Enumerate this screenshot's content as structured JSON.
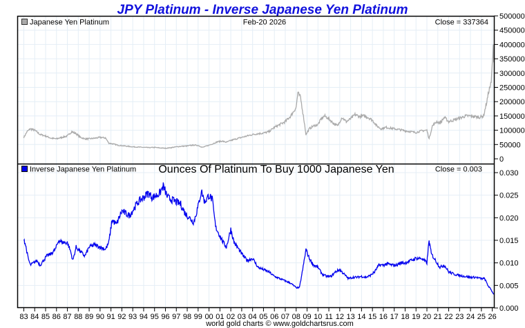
{
  "chart_data": [
    {
      "type": "line",
      "title": "JPY Platinum - Inverse Japanese Yen Platinum",
      "panel": "top",
      "legend": "Japanese Yen Platinum",
      "legend_color": "#aaaaaa",
      "date_label": "Feb-20  2026",
      "close_label": "Close = 337364",
      "series_color": "#aaaaaa",
      "ylim": [
        0,
        500000
      ],
      "yticks": [
        "500000",
        "450000",
        "400000",
        "350000",
        "300000",
        "250000",
        "200000",
        "150000",
        "100000",
        "50000",
        "0"
      ],
      "ytick_values": [
        500000,
        450000,
        400000,
        350000,
        300000,
        250000,
        200000,
        150000,
        100000,
        50000,
        0
      ],
      "x": [
        1983.0,
        1983.3,
        1983.6,
        1984.0,
        1984.5,
        1985.0,
        1985.5,
        1986.0,
        1986.5,
        1987.0,
        1987.4,
        1987.8,
        1988.2,
        1988.6,
        1989.0,
        1989.5,
        1990.0,
        1990.5,
        1990.8,
        1991.2,
        1991.6,
        1992.0,
        1992.5,
        1993.0,
        1993.5,
        1994.0,
        1994.5,
        1995.0,
        1995.5,
        1996.0,
        1996.5,
        1997.0,
        1997.5,
        1998.0,
        1998.5,
        1999.0,
        1999.4,
        1999.8,
        2000.3,
        2000.8,
        2001.2,
        2001.6,
        2002.0,
        2002.5,
        2003.0,
        2003.5,
        2004.0,
        2004.5,
        2005.0,
        2005.5,
        2006.0,
        2006.5,
        2007.0,
        2007.5,
        2008.0,
        2008.15,
        2008.4,
        2008.7,
        2008.9,
        2009.2,
        2009.6,
        2010.0,
        2010.3,
        2010.6,
        2011.0,
        2011.4,
        2011.8,
        2012.2,
        2012.6,
        2013.0,
        2013.4,
        2013.8,
        2014.2,
        2014.6,
        2015.0,
        2015.4,
        2015.8,
        2016.2,
        2016.6,
        2017.0,
        2017.5,
        2018.0,
        2018.5,
        2019.0,
        2019.5,
        2020.0,
        2020.2,
        2020.5,
        2020.9,
        2021.2,
        2021.6,
        2022.0,
        2022.4,
        2022.8,
        2023.2,
        2023.6,
        2024.0,
        2024.4,
        2024.8,
        2025.2,
        2025.5,
        2025.7,
        2025.9,
        2026.0,
        2026.1,
        2026.14
      ],
      "values": [
        75000,
        95000,
        105000,
        100000,
        85000,
        80000,
        72000,
        70000,
        75000,
        80000,
        95000,
        88000,
        75000,
        70000,
        70000,
        72000,
        75000,
        73000,
        55000,
        52000,
        48000,
        46000,
        44000,
        42000,
        41000,
        40000,
        39000,
        40000,
        38000,
        37000,
        39000,
        42000,
        44000,
        45000,
        48000,
        47000,
        40000,
        45000,
        52000,
        60000,
        62000,
        58000,
        64000,
        70000,
        75000,
        80000,
        85000,
        88000,
        90000,
        95000,
        110000,
        120000,
        130000,
        150000,
        180000,
        230000,
        215000,
        140000,
        85000,
        105000,
        115000,
        120000,
        140000,
        150000,
        140000,
        125000,
        115000,
        145000,
        130000,
        140000,
        155000,
        148000,
        150000,
        145000,
        135000,
        115000,
        105000,
        110000,
        108000,
        105000,
        102000,
        98000,
        95000,
        92000,
        98000,
        100000,
        70000,
        115000,
        130000,
        125000,
        145000,
        130000,
        135000,
        140000,
        145000,
        150000,
        150000,
        148000,
        145000,
        150000,
        200000,
        240000,
        265000,
        330000,
        390000,
        337364
      ]
    },
    {
      "type": "line",
      "panel": "bottom",
      "legend": "Inverse Japanese Yen Platinum",
      "legend_color": "#0000ee",
      "subtitle": "Ounces Of Platinum To Buy 1000 Japanese Yen",
      "close_label": "Close = 0.003",
      "series_color": "#0000ee",
      "ylim": [
        0,
        0.03
      ],
      "yticks": [
        "0.030",
        "0.025",
        "0.020",
        "0.015",
        "0.010",
        "0.005",
        "0.000"
      ],
      "ytick_values": [
        0.03,
        0.025,
        0.02,
        0.015,
        0.01,
        0.005,
        0.0
      ],
      "x": [
        1983.0,
        1983.2,
        1983.4,
        1983.6,
        1983.9,
        1984.2,
        1984.5,
        1984.8,
        1985.1,
        1985.5,
        1985.9,
        1986.2,
        1986.6,
        1987.0,
        1987.3,
        1987.5,
        1987.8,
        1988.2,
        1988.6,
        1989.0,
        1989.5,
        1990.0,
        1990.5,
        1990.8,
        1991.1,
        1991.5,
        1992.0,
        1992.3,
        1992.7,
        1993.1,
        1993.5,
        1994.0,
        1994.4,
        1994.8,
        1995.2,
        1995.5,
        1995.8,
        1996.2,
        1996.6,
        1997.0,
        1997.4,
        1997.8,
        1998.2,
        1998.6,
        1999.0,
        1999.3,
        1999.6,
        2000.0,
        2000.3,
        2000.6,
        2001.0,
        2001.3,
        2001.6,
        2002.0,
        2002.3,
        2002.6,
        2003.0,
        2003.5,
        2004.0,
        2004.5,
        2005.0,
        2005.5,
        2006.0,
        2006.5,
        2007.0,
        2007.5,
        2008.0,
        2008.3,
        2008.6,
        2008.9,
        2009.2,
        2009.6,
        2010.0,
        2010.4,
        2010.8,
        2011.2,
        2011.6,
        2012.0,
        2012.4,
        2012.8,
        2013.2,
        2013.6,
        2014.0,
        2014.4,
        2014.8,
        2015.2,
        2015.6,
        2016.0,
        2016.4,
        2016.8,
        2017.2,
        2017.6,
        2018.0,
        2018.5,
        2019.0,
        2019.5,
        2020.0,
        2020.2,
        2020.4,
        2020.8,
        2021.2,
        2021.6,
        2022.0,
        2022.5,
        2023.0,
        2023.5,
        2024.0,
        2024.5,
        2025.0,
        2025.3,
        2025.6,
        2025.9,
        2026.14
      ],
      "values": [
        0.0155,
        0.0135,
        0.011,
        0.0095,
        0.01,
        0.0105,
        0.0095,
        0.0105,
        0.0115,
        0.012,
        0.013,
        0.015,
        0.0145,
        0.0145,
        0.0125,
        0.0105,
        0.0135,
        0.0125,
        0.0115,
        0.0135,
        0.014,
        0.0135,
        0.013,
        0.0145,
        0.0195,
        0.0185,
        0.0215,
        0.021,
        0.0205,
        0.022,
        0.0235,
        0.0245,
        0.0255,
        0.0245,
        0.025,
        0.0255,
        0.027,
        0.0245,
        0.024,
        0.0235,
        0.023,
        0.021,
        0.02,
        0.019,
        0.0225,
        0.026,
        0.0235,
        0.025,
        0.024,
        0.018,
        0.016,
        0.0145,
        0.0135,
        0.0175,
        0.0145,
        0.0135,
        0.012,
        0.0105,
        0.011,
        0.009,
        0.0085,
        0.008,
        0.007,
        0.0065,
        0.006,
        0.0055,
        0.0045,
        0.0045,
        0.0085,
        0.013,
        0.011,
        0.0095,
        0.009,
        0.0075,
        0.007,
        0.007,
        0.008,
        0.0085,
        0.0075,
        0.0065,
        0.0068,
        0.0068,
        0.007,
        0.0068,
        0.0072,
        0.008,
        0.0095,
        0.0095,
        0.0098,
        0.0095,
        0.0095,
        0.01,
        0.01,
        0.0105,
        0.011,
        0.011,
        0.01,
        0.015,
        0.012,
        0.0105,
        0.009,
        0.0095,
        0.008,
        0.0075,
        0.0072,
        0.007,
        0.0068,
        0.0068,
        0.0065,
        0.0065,
        0.005,
        0.004,
        0.003
      ]
    }
  ],
  "xaxis": {
    "xlim": [
      1982.4,
      2026.15
    ],
    "tick_labels": [
      "83",
      "84",
      "85",
      "86",
      "87",
      "88",
      "89",
      "90",
      "91",
      "92",
      "93",
      "94",
      "95",
      "96",
      "97",
      "98",
      "99",
      "00",
      "01",
      "02",
      "03",
      "04",
      "05",
      "06",
      "07",
      "08",
      "09",
      "10",
      "11",
      "12",
      "13",
      "14",
      "15",
      "16",
      "17",
      "18",
      "19",
      "20",
      "21",
      "22",
      "23",
      "24",
      "25",
      "26"
    ],
    "tick_years": [
      1983,
      1984,
      1985,
      1986,
      1987,
      1988,
      1989,
      1990,
      1991,
      1992,
      1993,
      1994,
      1995,
      1996,
      1997,
      1998,
      1999,
      2000,
      2001,
      2002,
      2003,
      2004,
      2005,
      2006,
      2007,
      2008,
      2009,
      2010,
      2011,
      2012,
      2013,
      2014,
      2015,
      2016,
      2017,
      2018,
      2019,
      2020,
      2021,
      2022,
      2023,
      2024,
      2025,
      2026
    ]
  },
  "footer": "world gold charts © www.goldchartsrus.com",
  "grid": true,
  "colors": {
    "grid": "#e4eef6",
    "title": "#1111dd"
  }
}
